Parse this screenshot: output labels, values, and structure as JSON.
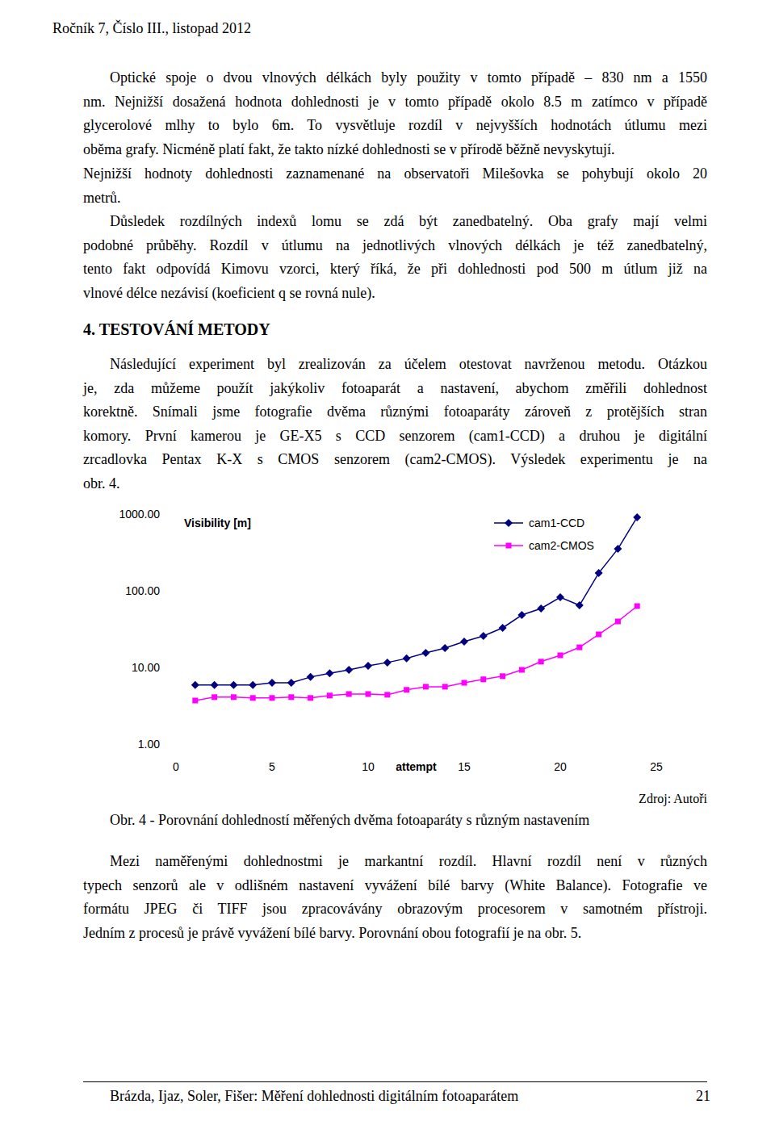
{
  "header": {
    "text": "Ročník 7, Číslo III., listopad 2012"
  },
  "paragraphs": [
    {
      "indent": true,
      "lines": [
        "Optické spoje o dvou vlnových délkách byly použity v tomto případě – 830 nm a 1550",
        "nm. Nejnižší dosažená hodnota dohlednosti je v tomto případě okolo 8.5 m zatímco v případě",
        "glycerolové mlhy to bylo 6m. To vysvětluje rozdíl v nejvyšších hodnotách útlumu mezi",
        "oběma grafy. Nicméně platí fakt, že takto nízké dohlednosti se v přírodě běžně nevyskytují."
      ]
    },
    {
      "indent": false,
      "lines": [
        "Nejnižší hodnoty dohlednosti zaznamenané na observatoři Milešovka se pohybují okolo 20",
        "metrů."
      ]
    },
    {
      "indent": true,
      "lines": [
        "Důsledek rozdílných indexů lomu se zdá být zanedbatelný. Oba grafy mají velmi",
        "podobné průběhy. Rozdíl v útlumu na jednotlivých vlnových délkách je též zanedbatelný,",
        "tento fakt odpovídá Kimovu vzorci, který říká, že při dohlednosti pod 500 m útlum již na",
        "vlnové délce nezávisí (koeficient q se rovná nule)."
      ]
    },
    {
      "indent": true,
      "lines": [
        "Následující experiment byl zrealizován za účelem otestovat navrženou metodu. Otázkou",
        "je, zda můžeme použít jakýkoliv fotoaparát a nastavení, abychom změřili dohlednost",
        "korektně. Snímali jsme fotografie dvěma různými fotoaparáty zároveň z protějších stran",
        "komory. První kamerou je GE-X5 s CCD senzorem (cam1-CCD) a druhou je digitální",
        "zrcadlovka Pentax K-X s CMOS senzorem (cam2-CMOS). Výsledek experimentu je na",
        "obr. 4."
      ]
    },
    {
      "indent": true,
      "lines": [
        "Mezi naměřenými dohlednostmi je markantní rozdíl. Hlavní rozdíl není v různých",
        "typech senzorů ale v odlišném nastavení vyvážení bílé barvy (White Balance). Fotografie ve",
        "formátu JPEG či TIFF jsou zpracovávány obrazovým procesorem v samotném přístroji.",
        "Jedním z procesů je právě vyvážení bílé barvy. Porovnání obou fotografií je na obr. 5."
      ]
    }
  ],
  "heading": "4. TESTOVÁNÍ METODY",
  "source_note": "Zdroj: Autoři",
  "caption": "Obr. 4 - Porovnání dohledností měřených dvěma fotoaparáty s různým nastavením",
  "footer": {
    "text": "Brázda, Ijaz, Soler, Fišer: Měření dohlednosti digitálním fotoaparátem",
    "page": "21"
  },
  "chart_data": {
    "type": "line",
    "y_label": "Visibility [m]",
    "x_label": "attempt",
    "x": [
      1,
      2,
      3,
      4,
      5,
      6,
      7,
      8,
      9,
      10,
      11,
      12,
      13,
      14,
      15,
      16,
      17,
      18,
      19,
      20,
      21,
      22,
      23,
      24
    ],
    "series": [
      {
        "name": "cam1-CCD",
        "color": "#000080",
        "marker": "diamond",
        "values": [
          5.9,
          5.9,
          5.9,
          5.9,
          6.3,
          6.3,
          7.5,
          8.4,
          9.3,
          10.5,
          11.6,
          13.1,
          15.5,
          17.9,
          21.7,
          25.7,
          32.8,
          48.3,
          58.7,
          82.4,
          64.6,
          170,
          352,
          908
        ]
      },
      {
        "name": "cam2-CMOS",
        "color": "#ff00ff",
        "marker": "square",
        "values": [
          3.7,
          4.1,
          4.1,
          4.0,
          4.0,
          4.1,
          4.0,
          4.3,
          4.5,
          4.5,
          4.4,
          5.1,
          5.6,
          5.6,
          6.3,
          7.0,
          7.7,
          9.3,
          11.9,
          14.4,
          18.3,
          27.0,
          39.8,
          63.1
        ]
      }
    ],
    "xlim": [
      0,
      25
    ],
    "xticks": [
      0,
      5,
      10,
      15,
      20,
      25
    ],
    "ylim": [
      1,
      1000
    ],
    "yticks": [
      {
        "value": 1,
        "label": "1.00"
      },
      {
        "value": 10,
        "label": "10.00"
      },
      {
        "value": 100,
        "label": "100.00"
      },
      {
        "value": 1000,
        "label": "1000.00"
      }
    ],
    "log": "y",
    "grid": false,
    "legend": "top-right"
  }
}
